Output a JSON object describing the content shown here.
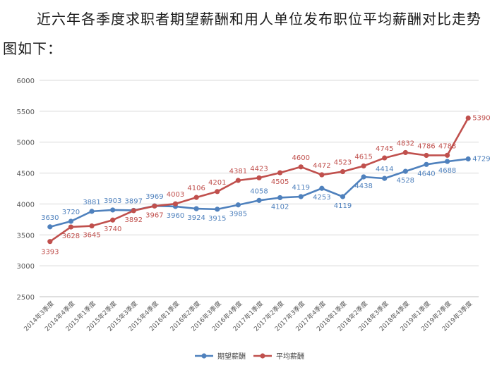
{
  "intro_text": "近六年各季度求职者期望薪酬和用人单位发布职位平均薪酬对比走势图如下：",
  "colors": {
    "expected": "#4f81bd",
    "average": "#c0504d",
    "grid": "#d9d9d9",
    "axis": "#bfbfbf"
  },
  "chart_data": {
    "type": "line",
    "title": "",
    "xlabel": "",
    "ylabel": "",
    "ylim": [
      2500,
      6000
    ],
    "yticks": [
      2500,
      3000,
      3500,
      4000,
      4500,
      5000,
      5500,
      6000
    ],
    "grid": true,
    "legend_position": "bottom",
    "categories": [
      "2014年3季度",
      "2014年4季度",
      "2015年1季度",
      "2015年2季度",
      "2015年3季度",
      "2015年4季度",
      "2016年1季度",
      "2016年2季度",
      "2016年3季度",
      "2016年4季度",
      "2017年1季度",
      "2017年2季度",
      "2017年3季度",
      "2017年4季度",
      "2018年1季度",
      "2018年2季度",
      "2018年3季度",
      "2018年4季度",
      "2019年1季度",
      "2019年2季度",
      "2019年3季度"
    ],
    "series": [
      {
        "name": "期望薪酬",
        "color": "#4f81bd",
        "values": [
          3630,
          3720,
          3881,
          3903,
          3897,
          3969,
          3960,
          3924,
          3915,
          3985,
          4058,
          4102,
          4119,
          4253,
          4119,
          4438,
          4414,
          4528,
          4640,
          4688,
          4729
        ],
        "labels": [
          "3630",
          "3720",
          "3881",
          "3903",
          "3897",
          "3969",
          "3960",
          "3924",
          "3915",
          "3985",
          "4058",
          "4102",
          "4119",
          "4253",
          "4119",
          "4438",
          "4414",
          "4528",
          "4640",
          "4688",
          "4729"
        ]
      },
      {
        "name": "平均薪酬",
        "color": "#c0504d",
        "values": [
          3393,
          3628,
          3645,
          3740,
          3892,
          3967,
          4003,
          4106,
          4201,
          4381,
          4423,
          4505,
          4600,
          4472,
          4523,
          4615,
          4745,
          4832,
          4786,
          4788,
          5390
        ],
        "labels": [
          "3393",
          "3628",
          "3645",
          "3740",
          "3892",
          "3967",
          "4003",
          "4106",
          "4201",
          "4381",
          "4423",
          "4505",
          "4600",
          "4472",
          "4523",
          "4615",
          "4745",
          "4832",
          "4786",
          "4788",
          "5390"
        ]
      }
    ]
  }
}
